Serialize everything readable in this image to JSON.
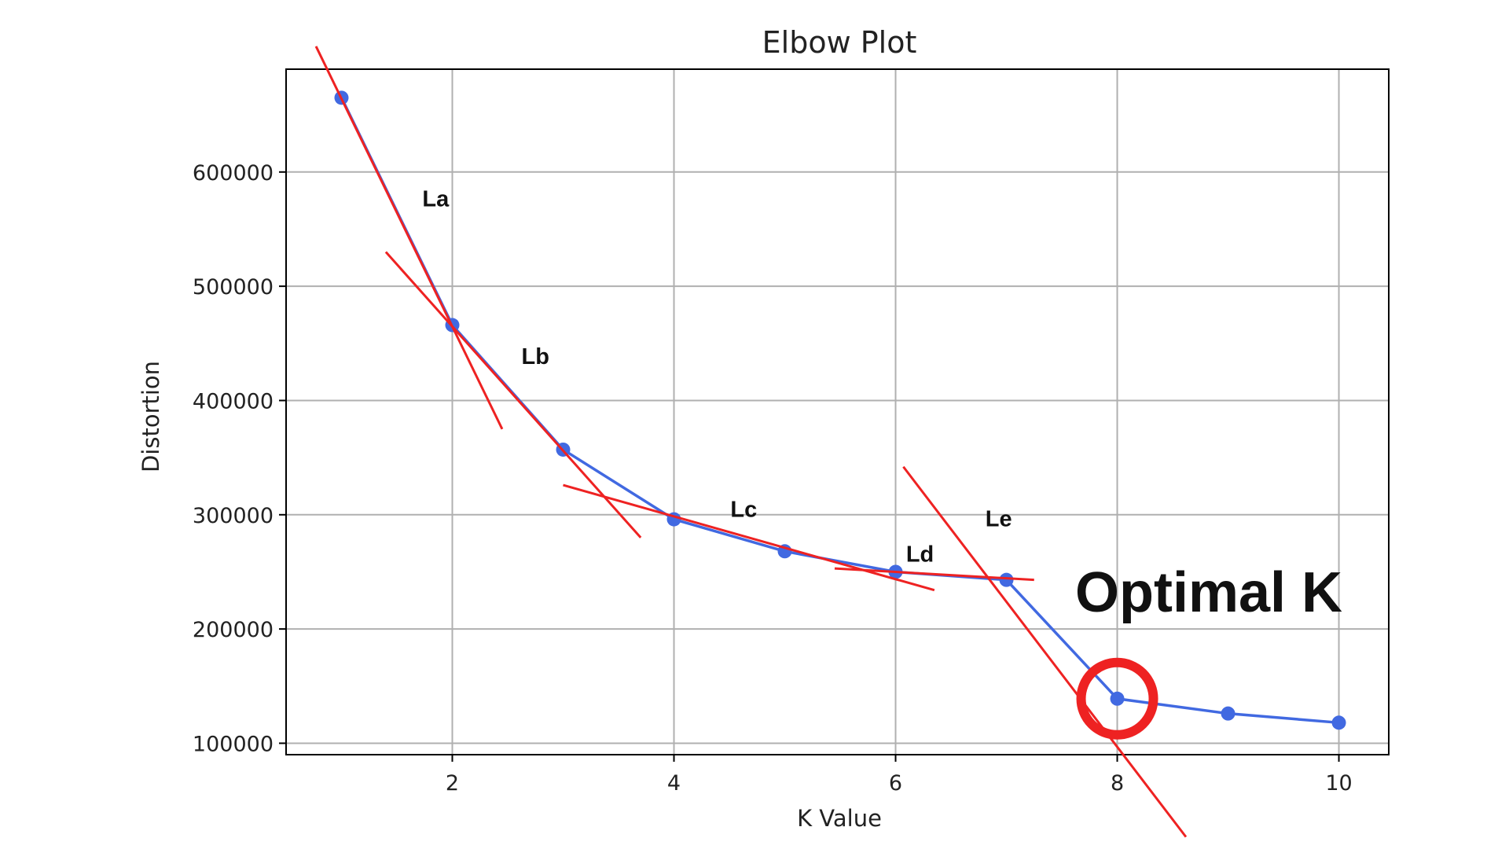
{
  "chart_data": {
    "type": "line",
    "title": "Elbow Plot",
    "xlabel": "K Value",
    "ylabel": "Distortion",
    "xlim": [
      0.5,
      10.45
    ],
    "ylim": [
      90000,
      690000
    ],
    "x_ticks": [
      2,
      4,
      6,
      8,
      10
    ],
    "y_ticks": [
      100000,
      200000,
      300000,
      400000,
      500000,
      600000
    ],
    "grid": true,
    "series": [
      {
        "color": "#4169E1",
        "x": [
          1,
          2,
          3,
          4,
          5,
          6,
          7,
          8,
          9,
          10
        ],
        "y": [
          665000,
          466000,
          357000,
          296000,
          268000,
          250000,
          243000,
          139000,
          126000,
          118000
        ]
      }
    ],
    "annotations": {
      "line_color": "#EE2222",
      "segments": [
        {
          "label": "La",
          "x": [
            0.77,
            2.45
          ],
          "y": [
            710000,
            375000
          ],
          "label_x": 1.85,
          "label_y": 570000
        },
        {
          "label": "Lb",
          "x": [
            1.4,
            3.7
          ],
          "y": [
            530000,
            280000
          ],
          "label_x": 2.75,
          "label_y": 432000
        },
        {
          "label": "Lc",
          "x": [
            3.0,
            6.35
          ],
          "y": [
            326000,
            234000
          ],
          "label_x": 4.63,
          "label_y": 298000
        },
        {
          "label": "Ld",
          "x": [
            5.45,
            7.25
          ],
          "y": [
            253000,
            243000
          ],
          "label_x": 6.22,
          "label_y": 259000
        },
        {
          "label": "Le",
          "x": [
            6.07,
            8.62
          ],
          "y": [
            342000,
            18000
          ],
          "label_x": 6.93,
          "label_y": 290000
        }
      ],
      "callout": {
        "text": "Optimal K",
        "x": 8,
        "y": 139000
      }
    }
  }
}
